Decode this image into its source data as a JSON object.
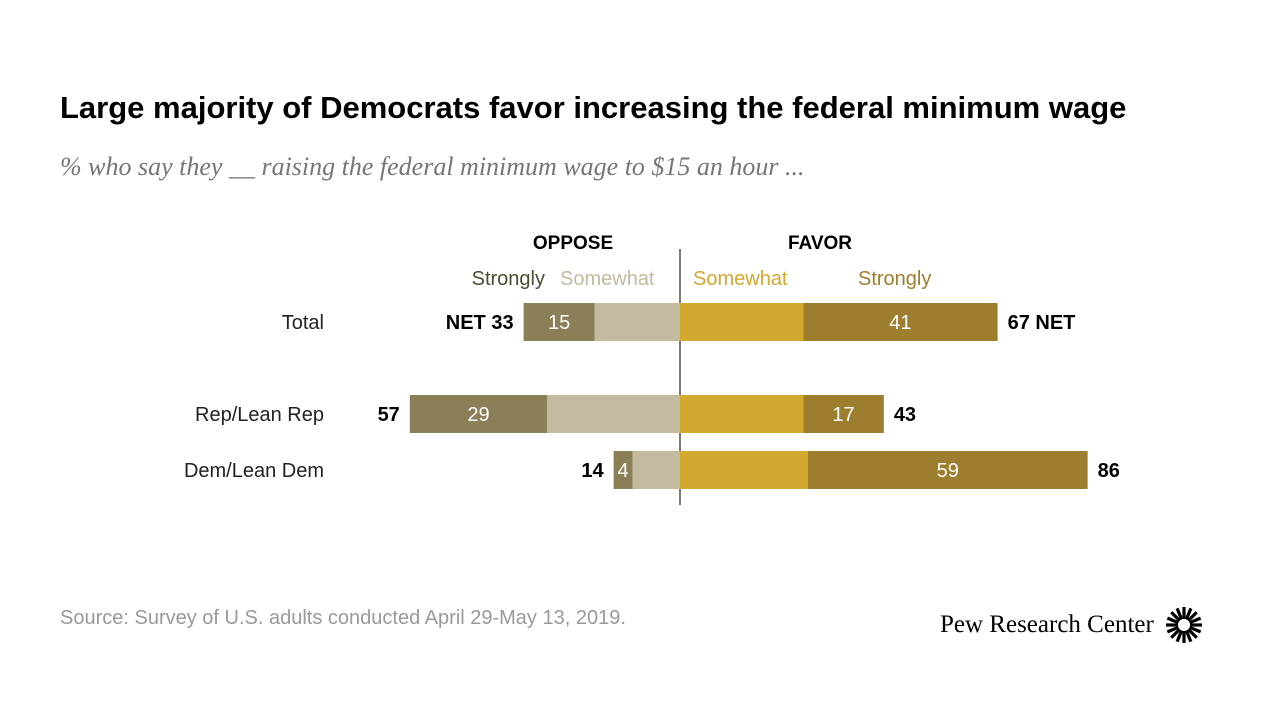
{
  "chart_data": {
    "type": "bar",
    "orientation": "horizontal-diverging",
    "title": "Large majority of Democrats favor increasing the federal minimum wage",
    "subtitle": "% who say they __ raising the federal minimum wage to $15 an hour ...",
    "group_labels": {
      "oppose": "OPPOSE",
      "favor": "FAVOR"
    },
    "legend": [
      {
        "name": "Strongly",
        "side": "oppose",
        "color": "#8b7f57",
        "label_color": "#4d4a33"
      },
      {
        "name": "Somewhat",
        "side": "oppose",
        "color": "#c2b99f",
        "label_color": "#c2b99f"
      },
      {
        "name": "Somewhat",
        "side": "favor",
        "color": "#d3a82f",
        "label_color": "#d3a82f"
      },
      {
        "name": "Strongly",
        "side": "favor",
        "color": "#9d7d2e",
        "label_color": "#9d7d2e"
      }
    ],
    "categories": [
      "Total",
      "Rep/Lean Rep",
      "Dem/Lean Dem"
    ],
    "series": [
      {
        "name": "Oppose strongly",
        "values": [
          15,
          29,
          4
        ]
      },
      {
        "name": "Oppose somewhat",
        "values": [
          18,
          28,
          10
        ]
      },
      {
        "name": "Favor somewhat",
        "values": [
          26,
          26,
          27
        ]
      },
      {
        "name": "Favor strongly",
        "values": [
          41,
          17,
          59
        ]
      }
    ],
    "net_oppose": [
      33,
      57,
      14
    ],
    "net_favor": [
      67,
      43,
      86
    ],
    "net_label": "NET"
  },
  "source": "Source: Survey of U.S. adults conducted April 29-May 13, 2019.",
  "logo": "Pew Research Center"
}
